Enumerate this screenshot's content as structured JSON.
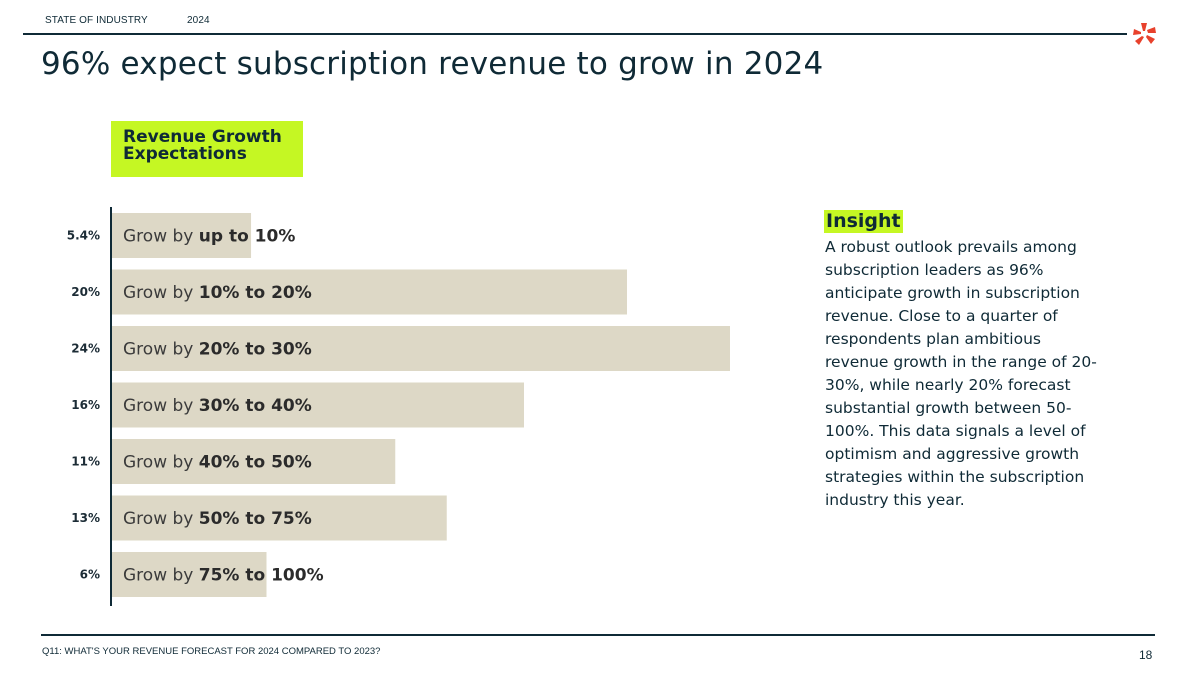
{
  "header": {
    "section_label": "STATE OF INDUSTRY",
    "year_label": "2024",
    "title": "96% expect subscription revenue to grow in 2024",
    "logo_icon": "asterisk-logo-icon",
    "logo_color": "#e8412c"
  },
  "colors": {
    "accent": "#c5f723",
    "bar": "#ddd8c6",
    "ink": "#0f2a36"
  },
  "chart_badge": {
    "line1": "Revenue Growth",
    "line2": "Expectations"
  },
  "chart_data": {
    "type": "bar",
    "orientation": "horizontal",
    "title": "Revenue Growth Expectations",
    "label_prefix": "Grow by ",
    "categories": [
      "up to 10%",
      "10% to 20%",
      "20% to 30%",
      "30% to 40%",
      "40% to 50%",
      "50% to 75%",
      "75% to 100%"
    ],
    "values": [
      5.4,
      20,
      24,
      16,
      11,
      13,
      6
    ],
    "value_labels": [
      "5.4%",
      "20%",
      "24%",
      "16%",
      "11%",
      "13%",
      "6%"
    ],
    "xlim": [
      0,
      24
    ],
    "grid": false,
    "legend": "none"
  },
  "insight": {
    "title": "Insight",
    "text": "A robust outlook prevails among subscription leaders as 96% anticipate growth in subscription revenue. Close to a quarter of respondents plan ambitious revenue growth in the range of 20-30%, while nearly 20% forecast substantial growth between 50-100%. This data signals a level of optimism and aggressive growth strategies within the subscription industry this year."
  },
  "footer": {
    "question": "Q11: WHAT'S YOUR REVENUE FORECAST FOR 2024 COMPARED TO 2023?",
    "page_number": "18"
  }
}
